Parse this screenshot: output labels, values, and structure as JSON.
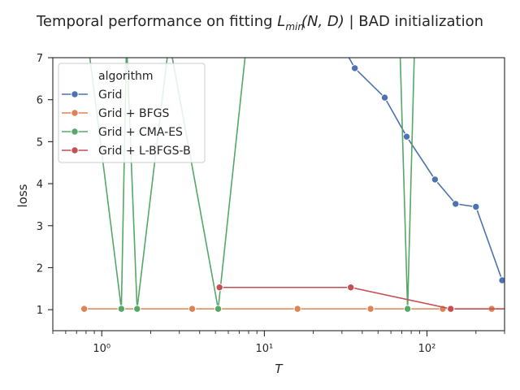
{
  "chart_data": {
    "type": "line",
    "title": "Temporal performance on fitting L̂_min(N, D) | BAD initialization",
    "title_parts": {
      "prefix": "Temporal performance on fitting ",
      "L": "L",
      "sub": "min",
      "args": "(N, D)",
      "suffix": " | BAD initialization"
    },
    "xlabel": "T",
    "ylabel": "loss",
    "xscale": "log",
    "xlim": [
      0.5,
      300
    ],
    "ylim": [
      0.5,
      7.0
    ],
    "yticks": [
      1,
      2,
      3,
      4,
      5,
      6,
      7
    ],
    "xticks_major": [
      1,
      10,
      100
    ],
    "xtick_labels": [
      "10⁰",
      "10¹",
      "10²"
    ],
    "grid": false,
    "legend": {
      "title": "algorithm",
      "placement": "top-left"
    },
    "series": [
      {
        "name": "Grid",
        "color": "#4c72b0",
        "x": [
          30,
          36,
          55,
          75,
          112,
          150,
          200,
          290
        ],
        "y": [
          7.3,
          6.75,
          6.05,
          5.12,
          4.1,
          3.52,
          3.45,
          1.7
        ],
        "markers": [
          false,
          true,
          true,
          true,
          true,
          true,
          true,
          true
        ]
      },
      {
        "name": "Grid + BFGS",
        "color": "#dd8452",
        "x": [
          0.78,
          3.6,
          16,
          45,
          125,
          250,
          300
        ],
        "y": [
          1.02,
          1.02,
          1.02,
          1.02,
          1.02,
          1.02,
          1.02
        ],
        "markers": [
          true,
          true,
          true,
          true,
          true,
          true,
          false
        ]
      },
      {
        "name": "Grid + CMA-ES",
        "color": "#55a868",
        "x": [
          0.82,
          1.32,
          1.42,
          1.65,
          2.6,
          5.2,
          7.8,
          68,
          76,
          84
        ],
        "y": [
          7.4,
          1.02,
          7.4,
          1.02,
          7.4,
          1.02,
          7.4,
          7.4,
          1.02,
          7.4
        ],
        "markers": [
          false,
          true,
          false,
          true,
          false,
          true,
          false,
          false,
          true,
          false
        ]
      },
      {
        "name": "Grid + L-BFGS-B",
        "color": "#c44e52",
        "x": [
          5.3,
          34,
          140,
          300
        ],
        "y": [
          1.53,
          1.53,
          1.02,
          1.02
        ],
        "markers": [
          true,
          true,
          true,
          false
        ]
      }
    ]
  }
}
